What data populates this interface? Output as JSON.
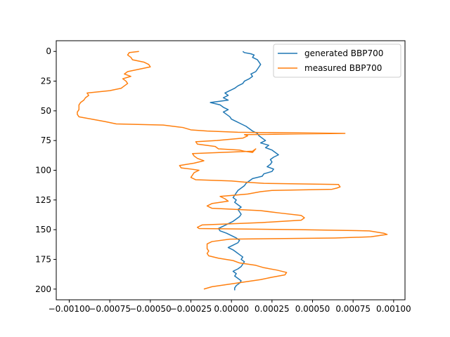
{
  "chart_data": {
    "type": "line",
    "title": "",
    "xlabel": "",
    "ylabel": "",
    "xlim": [
      -0.00108,
      0.00107
    ],
    "ylim": [
      209,
      -9
    ],
    "y_inverted": true,
    "grid": false,
    "legend_placement": "top-right",
    "x_ticks": [
      -0.001,
      -0.00075,
      -0.0005,
      -0.00025,
      0.0,
      0.00025,
      0.0005,
      0.00075,
      0.001
    ],
    "x_tick_labels": [
      "−0.00100",
      "−0.00075",
      "−0.00050",
      "−0.00025",
      "0.00000",
      "0.00025",
      "0.00050",
      "0.00075",
      "0.00100"
    ],
    "y_ticks": [
      0,
      25,
      50,
      75,
      100,
      125,
      150,
      175,
      200
    ],
    "y_tick_labels": [
      "0",
      "25",
      "50",
      "75",
      "100",
      "125",
      "150",
      "175",
      "200"
    ],
    "series": [
      {
        "name": "generated BBP700",
        "color": "#1f77b4",
        "points": [
          [
            7e-05,
            0
          ],
          [
            8e-05,
            1
          ],
          [
            0.00012,
            2
          ],
          [
            0.00014,
            3
          ],
          [
            0.00013,
            5
          ],
          [
            0.00016,
            7
          ],
          [
            0.00017,
            9
          ],
          [
            0.00018,
            11
          ],
          [
            0.00017,
            13
          ],
          [
            0.00016,
            15
          ],
          [
            0.00015,
            17
          ],
          [
            0.00012,
            19
          ],
          [
            0.00013,
            21
          ],
          [
            0.00011,
            23
          ],
          [
            8e-05,
            25
          ],
          [
            7e-05,
            27
          ],
          [
            4e-05,
            29
          ],
          [
            2e-05,
            31
          ],
          [
            -1e-05,
            33
          ],
          [
            -4e-05,
            35
          ],
          [
            -2e-05,
            37
          ],
          [
            -5e-05,
            39
          ],
          [
            -2e-05,
            41
          ],
          [
            -0.00013,
            43
          ],
          [
            -7e-05,
            45
          ],
          [
            -5e-05,
            47
          ],
          [
            -2e-05,
            49
          ],
          [
            -5e-05,
            51
          ],
          [
            -3e-05,
            53
          ],
          [
            -1e-05,
            55
          ],
          [
            0.0,
            57
          ],
          [
            3e-05,
            59
          ],
          [
            6e-05,
            61
          ],
          [
            9e-05,
            63
          ],
          [
            0.00011,
            65
          ],
          [
            0.00013,
            67
          ],
          [
            0.00016,
            69
          ],
          [
            0.00017,
            71
          ],
          [
            0.00019,
            73
          ],
          [
            0.00021,
            75
          ],
          [
            0.00018,
            77
          ],
          [
            0.00023,
            79
          ],
          [
            0.00021,
            81
          ],
          [
            0.00025,
            83
          ],
          [
            0.00027,
            85
          ],
          [
            0.00029,
            87
          ],
          [
            0.00026,
            89
          ],
          [
            0.00024,
            91
          ],
          [
            0.00025,
            93
          ],
          [
            0.00024,
            95
          ],
          [
            0.00022,
            97
          ],
          [
            0.00026,
            99
          ],
          [
            0.00025,
            101
          ],
          [
            0.0002,
            103
          ],
          [
            0.00019,
            105
          ],
          [
            0.00013,
            107
          ],
          [
            0.00011,
            109
          ],
          [
            9e-05,
            111
          ],
          [
            8e-05,
            113
          ],
          [
            6e-05,
            115
          ],
          [
            4e-05,
            117
          ],
          [
            3e-05,
            119
          ],
          [
            2e-05,
            121
          ],
          [
            1e-05,
            123
          ],
          [
            3e-05,
            125
          ],
          [
            2e-05,
            127
          ],
          [
            4e-05,
            129
          ],
          [
            6e-05,
            131
          ],
          [
            4e-05,
            133
          ],
          [
            5e-05,
            135
          ],
          [
            6e-05,
            137
          ],
          [
            5e-05,
            139
          ],
          [
            3e-05,
            141
          ],
          [
            1e-05,
            143
          ],
          [
            -2e-05,
            145
          ],
          [
            -5e-05,
            147
          ],
          [
            -8e-05,
            149
          ],
          [
            -7e-05,
            151
          ],
          [
            -3e-05,
            153
          ],
          [
            0.0,
            155
          ],
          [
            3e-05,
            157
          ],
          [
            5e-05,
            159
          ],
          [
            4e-05,
            161
          ],
          [
            1e-05,
            163
          ],
          [
            -2e-05,
            165
          ],
          [
            1e-05,
            167
          ],
          [
            3e-05,
            169
          ],
          [
            5e-05,
            171
          ],
          [
            7e-05,
            173
          ],
          [
            6e-05,
            175
          ],
          [
            8e-05,
            177
          ],
          [
            7e-05,
            179
          ],
          [
            6e-05,
            181
          ],
          [
            4e-05,
            183
          ],
          [
            1e-05,
            185
          ],
          [
            3e-05,
            187
          ],
          [
            2e-05,
            189
          ],
          [
            4e-05,
            191
          ],
          [
            6e-05,
            193
          ],
          [
            5e-05,
            195
          ],
          [
            3e-05,
            197
          ],
          [
            2e-05,
            199
          ],
          [
            2e-05,
            201
          ]
        ]
      },
      {
        "name": "measured BBP700",
        "color": "#ff7f0e",
        "points": [
          [
            -0.00057,
            0
          ],
          [
            -0.00063,
            1
          ],
          [
            -0.00064,
            3
          ],
          [
            -0.00062,
            5
          ],
          [
            -0.00061,
            7
          ],
          [
            -0.00054,
            9
          ],
          [
            -0.00051,
            11
          ],
          [
            -0.0005,
            13
          ],
          [
            -0.00057,
            15
          ],
          [
            -0.00064,
            17
          ],
          [
            -0.00066,
            19
          ],
          [
            -0.00062,
            21
          ],
          [
            -0.00067,
            23
          ],
          [
            -0.00065,
            25
          ],
          [
            -0.00064,
            27
          ],
          [
            -0.00066,
            29
          ],
          [
            -0.00068,
            31
          ],
          [
            -0.00075,
            33
          ],
          [
            -0.00089,
            35
          ],
          [
            -0.00088,
            37
          ],
          [
            -0.0009,
            39
          ],
          [
            -0.00091,
            41
          ],
          [
            -0.00093,
            43
          ],
          [
            -0.00094,
            45
          ],
          [
            -0.00094,
            47
          ],
          [
            -0.00094,
            49
          ],
          [
            -0.00095,
            51
          ],
          [
            -0.00095,
            53
          ],
          [
            -0.00094,
            55
          ],
          [
            -0.00086,
            57
          ],
          [
            -0.00078,
            59
          ],
          [
            -0.00071,
            61
          ],
          [
            -0.00042,
            62
          ],
          [
            -0.0003,
            64
          ],
          [
            -0.00025,
            66
          ],
          [
            -0.00015,
            67
          ],
          [
            4e-05,
            68
          ],
          [
            0.0007,
            69
          ],
          [
            8e-05,
            70
          ],
          [
            0.0001,
            71
          ],
          [
            7e-05,
            73
          ],
          [
            -9e-05,
            75
          ],
          [
            -0.00022,
            76
          ],
          [
            -0.00021,
            78
          ],
          [
            -0.0001,
            80
          ],
          [
            -8e-05,
            82
          ],
          [
            5e-05,
            83
          ],
          [
            8e-05,
            84
          ],
          [
            0.00013,
            85
          ],
          [
            0.00015,
            82
          ],
          [
            0.00013,
            84
          ],
          [
            -0.00024,
            86
          ],
          [
            -0.00023,
            88
          ],
          [
            -0.00021,
            90
          ],
          [
            -0.00017,
            92
          ],
          [
            -0.00023,
            94
          ],
          [
            -0.00032,
            96
          ],
          [
            -0.00031,
            98
          ],
          [
            -0.00025,
            99
          ],
          [
            -0.0002,
            100
          ],
          [
            -0.00023,
            102
          ],
          [
            -0.00024,
            104
          ],
          [
            -0.00025,
            106
          ],
          [
            -0.00022,
            108
          ],
          [
            0.0,
            109
          ],
          [
            8e-05,
            110
          ],
          [
            0.0002,
            111
          ],
          [
            0.00066,
            112
          ],
          [
            0.00067,
            114
          ],
          [
            0.00065,
            115
          ],
          [
            0.00062,
            116
          ],
          [
            0.00025,
            117
          ],
          [
            0.00018,
            118
          ],
          [
            0.0001,
            120
          ],
          [
            2e-05,
            121
          ],
          [
            -7e-05,
            122
          ],
          [
            -4e-05,
            124
          ],
          [
            -2e-05,
            126
          ],
          [
            -0.00012,
            128
          ],
          [
            -0.00015,
            130
          ],
          [
            -0.00012,
            132
          ],
          [
            0.00018,
            134
          ],
          [
            0.0003,
            136
          ],
          [
            0.00043,
            138
          ],
          [
            0.00045,
            140
          ],
          [
            0.00043,
            142
          ],
          [
            0.00019,
            144
          ],
          [
            -0.00018,
            146
          ],
          [
            -0.00021,
            148
          ],
          [
            -0.0002,
            149
          ],
          [
            0.00042,
            150
          ],
          [
            0.00085,
            151
          ],
          [
            0.00094,
            153
          ],
          [
            0.00096,
            154
          ],
          [
            0.00086,
            156
          ],
          [
            0.00064,
            157
          ],
          [
            -1e-05,
            158
          ],
          [
            -0.00012,
            160
          ],
          [
            -0.00015,
            162
          ],
          [
            -0.00015,
            164
          ],
          [
            -0.00015,
            166
          ],
          [
            -0.00014,
            168
          ],
          [
            -0.00015,
            170
          ],
          [
            -0.00014,
            172
          ],
          [
            -8e-05,
            174
          ],
          [
            1e-05,
            176
          ],
          [
            5e-05,
            178
          ],
          [
            0.00015,
            180
          ],
          [
            0.0002,
            182
          ],
          [
            0.00028,
            184
          ],
          [
            0.00034,
            186
          ],
          [
            0.00033,
            188
          ],
          [
            0.00025,
            190
          ],
          [
            0.00018,
            192
          ],
          [
            8e-05,
            194
          ],
          [
            -2e-05,
            196
          ],
          [
            -0.00012,
            198
          ],
          [
            -0.00017,
            200
          ]
        ]
      }
    ]
  }
}
